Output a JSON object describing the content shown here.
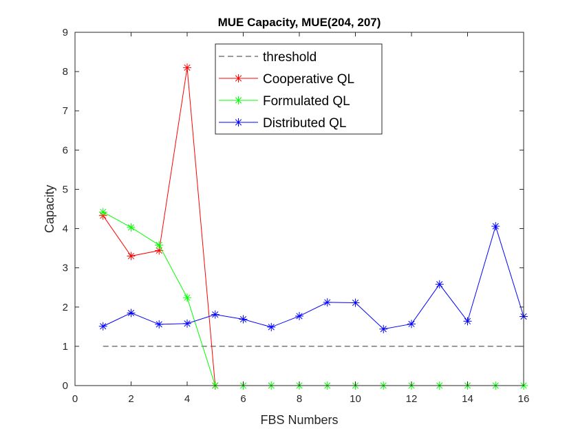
{
  "chart_data": {
    "type": "line",
    "title": "MUE Capacity, MUE(204, 207)",
    "xlabel": "FBS Numbers",
    "ylabel": "Capacity",
    "xlim": [
      0,
      16
    ],
    "ylim": [
      0,
      9
    ],
    "xticks": [
      0,
      2,
      4,
      6,
      8,
      10,
      12,
      14,
      16
    ],
    "yticks": [
      0,
      1,
      2,
      3,
      4,
      5,
      6,
      7,
      8,
      9
    ],
    "grid": false,
    "legend_position": "top",
    "series": [
      {
        "name": "threshold",
        "color": "#000000",
        "line_style": "dashed",
        "marker": "none",
        "x": [
          1,
          16
        ],
        "values": [
          1,
          1
        ]
      },
      {
        "name": "Cooperative QL",
        "color": "#ff0000",
        "line_style": "solid",
        "marker": "asterisk",
        "x": [
          1,
          2,
          3,
          4,
          5
        ],
        "values": [
          4.33,
          3.3,
          3.44,
          8.1,
          0
        ]
      },
      {
        "name": "Formulated QL",
        "color": "#00ff00",
        "line_style": "solid",
        "marker": "asterisk",
        "x": [
          1,
          2,
          3,
          4,
          5,
          6,
          7,
          8,
          9,
          10,
          11,
          12,
          13,
          14,
          15,
          16
        ],
        "values": [
          4.42,
          4.03,
          3.58,
          2.24,
          0,
          0,
          0,
          0,
          0,
          0,
          0,
          0,
          0,
          0,
          0,
          0
        ]
      },
      {
        "name": "Distributed QL",
        "color": "#0000ff",
        "line_style": "solid",
        "marker": "asterisk",
        "x": [
          1,
          2,
          3,
          4,
          5,
          6,
          7,
          8,
          9,
          10,
          11,
          12,
          13,
          14,
          15,
          16
        ],
        "values": [
          1.51,
          1.85,
          1.56,
          1.58,
          1.81,
          1.69,
          1.49,
          1.77,
          2.12,
          2.11,
          1.44,
          1.57,
          2.58,
          1.64,
          4.06,
          1.76
        ]
      }
    ]
  }
}
